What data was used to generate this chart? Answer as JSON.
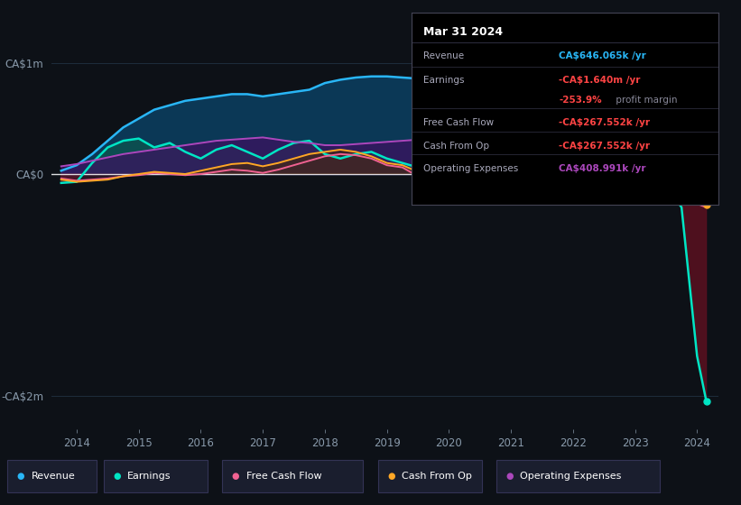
{
  "bg_color": "#0d1117",
  "plot_bg_color": "#0d1117",
  "grid_color": "#1e2d3d",
  "zero_line_color": "#ffffff",
  "years": [
    2013.75,
    2014.0,
    2014.25,
    2014.5,
    2014.75,
    2015.0,
    2015.25,
    2015.5,
    2015.75,
    2016.0,
    2016.25,
    2016.5,
    2016.75,
    2017.0,
    2017.25,
    2017.5,
    2017.75,
    2018.0,
    2018.25,
    2018.5,
    2018.75,
    2019.0,
    2019.25,
    2019.5,
    2019.75,
    2020.0,
    2020.25,
    2020.5,
    2020.75,
    2021.0,
    2021.25,
    2021.5,
    2021.75,
    2022.0,
    2022.25,
    2022.5,
    2022.75,
    2023.0,
    2023.1,
    2023.25,
    2023.5,
    2023.75,
    2024.0,
    2024.15
  ],
  "revenue": [
    0.03,
    0.08,
    0.18,
    0.3,
    0.42,
    0.5,
    0.58,
    0.62,
    0.66,
    0.68,
    0.7,
    0.72,
    0.72,
    0.7,
    0.72,
    0.74,
    0.76,
    0.82,
    0.85,
    0.87,
    0.88,
    0.88,
    0.87,
    0.86,
    0.84,
    0.82,
    0.82,
    0.83,
    0.84,
    0.86,
    0.87,
    0.88,
    0.89,
    0.92,
    0.95,
    0.97,
    0.98,
    1.0,
    1.02,
    0.98,
    0.9,
    0.8,
    0.646,
    0.55
  ],
  "earnings": [
    -0.08,
    -0.07,
    0.1,
    0.24,
    0.3,
    0.32,
    0.24,
    0.28,
    0.2,
    0.14,
    0.22,
    0.26,
    0.2,
    0.14,
    0.22,
    0.28,
    0.3,
    0.18,
    0.14,
    0.18,
    0.2,
    0.14,
    0.1,
    0.06,
    0.02,
    -0.04,
    -0.01,
    0.04,
    0.06,
    0.1,
    0.08,
    0.1,
    0.12,
    0.24,
    0.36,
    0.38,
    0.35,
    0.28,
    0.22,
    0.1,
    -0.1,
    -0.3,
    -1.64,
    -2.05
  ],
  "free_cash_flow": [
    -0.04,
    -0.06,
    -0.05,
    -0.04,
    -0.02,
    -0.01,
    0.01,
    0.0,
    -0.01,
    0.0,
    0.02,
    0.04,
    0.03,
    0.01,
    0.04,
    0.08,
    0.12,
    0.16,
    0.18,
    0.17,
    0.14,
    0.08,
    0.06,
    -0.02,
    -0.05,
    -0.1,
    -0.12,
    -0.08,
    -0.05,
    -0.02,
    -0.01,
    0.0,
    0.01,
    0.02,
    0.04,
    0.06,
    0.08,
    0.1,
    0.09,
    0.04,
    -0.06,
    -0.18,
    -0.2676,
    -0.3
  ],
  "cash_from_op": [
    -0.05,
    -0.07,
    -0.06,
    -0.05,
    -0.02,
    0.0,
    0.02,
    0.01,
    0.0,
    0.03,
    0.06,
    0.09,
    0.1,
    0.07,
    0.1,
    0.14,
    0.18,
    0.2,
    0.22,
    0.2,
    0.16,
    0.1,
    0.08,
    0.02,
    -0.01,
    -0.07,
    -0.1,
    -0.06,
    -0.03,
    0.0,
    0.01,
    0.02,
    0.04,
    0.05,
    0.08,
    0.1,
    0.12,
    0.14,
    0.12,
    0.06,
    -0.05,
    -0.16,
    -0.2676,
    -0.28
  ],
  "op_expenses": [
    0.07,
    0.09,
    0.12,
    0.15,
    0.18,
    0.2,
    0.22,
    0.24,
    0.26,
    0.28,
    0.3,
    0.31,
    0.32,
    0.33,
    0.31,
    0.29,
    0.28,
    0.26,
    0.26,
    0.27,
    0.28,
    0.29,
    0.3,
    0.31,
    0.32,
    0.33,
    0.34,
    0.35,
    0.35,
    0.33,
    0.31,
    0.3,
    0.3,
    0.31,
    0.32,
    0.33,
    0.34,
    0.34,
    0.35,
    0.34,
    0.33,
    0.31,
    0.409,
    0.38
  ],
  "revenue_color": "#29b6f6",
  "earnings_color": "#00e5c4",
  "free_cash_flow_color": "#f06292",
  "cash_from_op_color": "#ffa726",
  "op_expenses_color": "#ab47bc",
  "revenue_fill": "#0b3d5e",
  "earnings_fill_pos": "#0d5050",
  "earnings_fill_neg": "#5a1020",
  "op_expenses_fill": "#3d1060",
  "cash_from_op_fill_pos": "#4a2808",
  "cash_from_op_fill_neg": "#4a1a30",
  "ylim_min": -2.3,
  "ylim_max": 1.25,
  "xlim_min": 2013.6,
  "xlim_max": 2024.35,
  "yticks": [
    -2.0,
    0.0,
    1.0
  ],
  "ytick_labels": [
    "-CA$2m",
    "CA$0",
    "CA$1m"
  ],
  "xticks": [
    2014,
    2015,
    2016,
    2017,
    2018,
    2019,
    2020,
    2021,
    2022,
    2023,
    2024
  ],
  "xtick_labels": [
    "2014",
    "2015",
    "2016",
    "2017",
    "2018",
    "2019",
    "2020",
    "2021",
    "2022",
    "2023",
    "2024"
  ],
  "tooltip_title": "Mar 31 2024",
  "legend_items": [
    {
      "label": "Revenue",
      "color": "#29b6f6"
    },
    {
      "label": "Earnings",
      "color": "#00e5c4"
    },
    {
      "label": "Free Cash Flow",
      "color": "#f06292"
    },
    {
      "label": "Cash From Op",
      "color": "#ffa726"
    },
    {
      "label": "Operating Expenses",
      "color": "#ab47bc"
    }
  ]
}
